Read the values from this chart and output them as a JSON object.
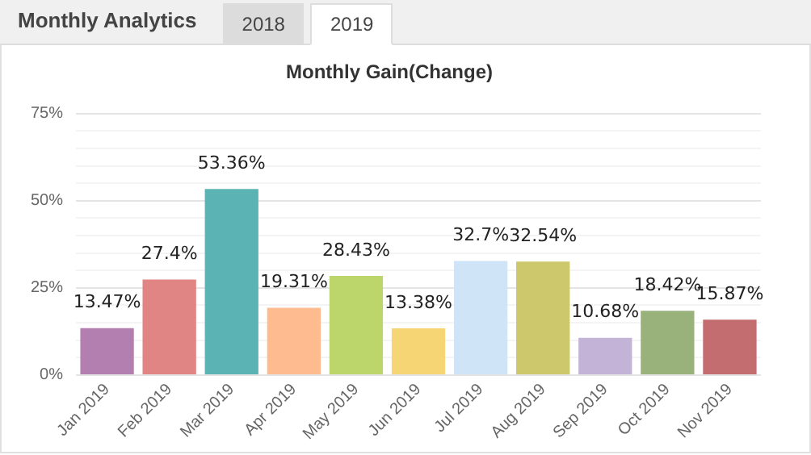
{
  "chart_data": {
    "type": "bar",
    "title": "Monthly Analytics",
    "subtitle": "Monthly Gain(Change)",
    "annotations": [
      "2018",
      "2019"
    ],
    "categories": [
      "Jan 2019",
      "Feb 2019",
      "Mar 2019",
      "Apr 2019",
      "May 2019",
      "Jun 2019",
      "Jul 2019",
      "Aug 2019",
      "Sep 2019",
      "Oct 2019",
      "Nov 2019"
    ],
    "values": [
      13.47,
      27.4,
      53.36,
      19.31,
      28.43,
      13.38,
      32.7,
      32.54,
      10.68,
      18.42,
      15.87
    ],
    "value_labels": [
      "13.47%",
      "27.4%",
      "53.36%",
      "19.31%",
      "28.43%",
      "13.38%",
      "32.7%",
      "32.54%",
      "10.68%",
      "18.42%",
      "15.87%"
    ],
    "colors": [
      "#b37fb0",
      "#e08484",
      "#5bb4b3",
      "#fdbb8f",
      "#bdd66b",
      "#f6d575",
      "#cfe4f7",
      "#ccc86b",
      "#c3b4d7",
      "#99b17b",
      "#c46d70"
    ],
    "ylim": [
      0,
      75
    ],
    "yticks": [
      {
        "value": 0,
        "label": "0%"
      },
      {
        "value": 5,
        "label": null
      },
      {
        "value": 10,
        "label": null
      },
      {
        "value": 15,
        "label": null
      },
      {
        "value": 20,
        "label": null
      },
      {
        "value": 25,
        "label": "25%"
      },
      {
        "value": 30,
        "label": null
      },
      {
        "value": 35,
        "label": null
      },
      {
        "value": 40,
        "label": null
      },
      {
        "value": 45,
        "label": null
      },
      {
        "value": 50,
        "label": "50%"
      },
      {
        "value": 55,
        "label": null
      },
      {
        "value": 60,
        "label": null
      },
      {
        "value": 65,
        "label": null
      },
      {
        "value": 70,
        "label": null
      },
      {
        "value": 75,
        "label": "75%"
      }
    ],
    "grid": "y",
    "legend": false
  }
}
